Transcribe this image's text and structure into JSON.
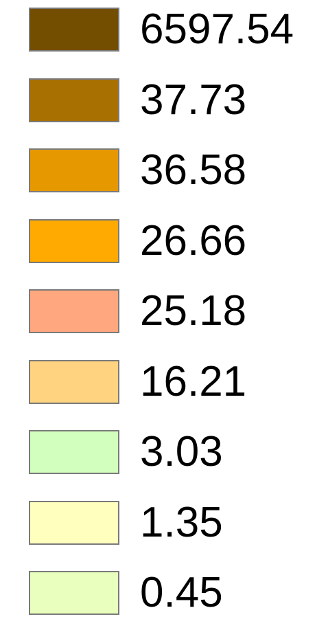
{
  "legend": {
    "items": [
      {
        "label": "6597.54",
        "color": "#734d00"
      },
      {
        "label": "37.73",
        "color": "#a87000"
      },
      {
        "label": "36.58",
        "color": "#e69800"
      },
      {
        "label": "26.66",
        "color": "#ffaa00"
      },
      {
        "label": "25.18",
        "color": "#ffa77f"
      },
      {
        "label": "16.21",
        "color": "#ffd37f"
      },
      {
        "label": "3.03",
        "color": "#d3ffbe"
      },
      {
        "label": "1.35",
        "color": "#ffffbe"
      },
      {
        "label": "0.45",
        "color": "#e9ffbe"
      }
    ]
  }
}
